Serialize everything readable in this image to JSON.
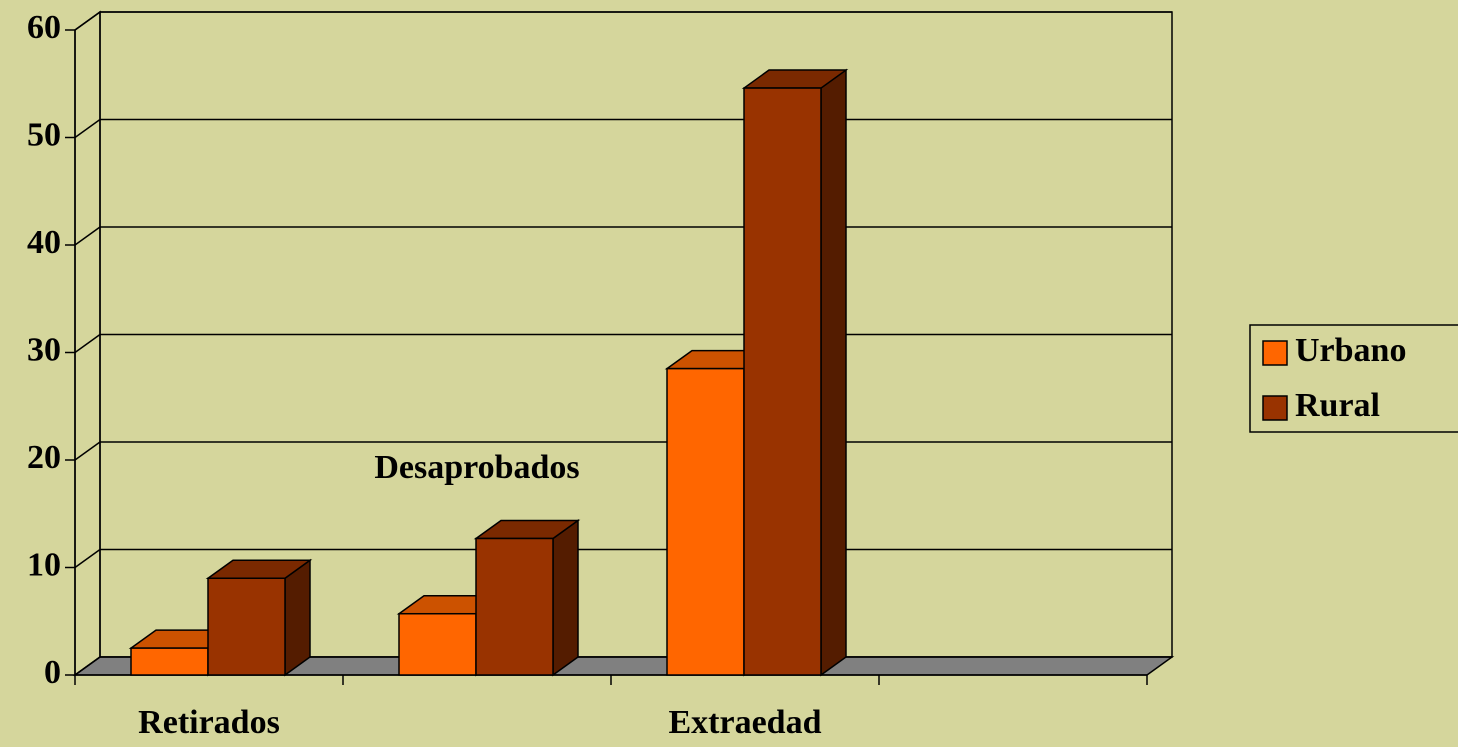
{
  "chart_data": {
    "type": "bar3d",
    "categories": [
      "Retirados",
      "Desaprobados",
      "Extraedad",
      null
    ],
    "series": [
      {
        "name": "Urbano",
        "color": "#ff6600",
        "values": [
          2.5,
          5.7,
          28.5,
          null
        ]
      },
      {
        "name": "Rural",
        "color": "#993300",
        "values": [
          9,
          12.7,
          54.6,
          null
        ]
      }
    ],
    "ylim": [
      0,
      60
    ],
    "yticks": [
      0,
      10,
      20,
      30,
      40,
      50,
      60
    ],
    "grid": true,
    "legend": "right"
  }
}
